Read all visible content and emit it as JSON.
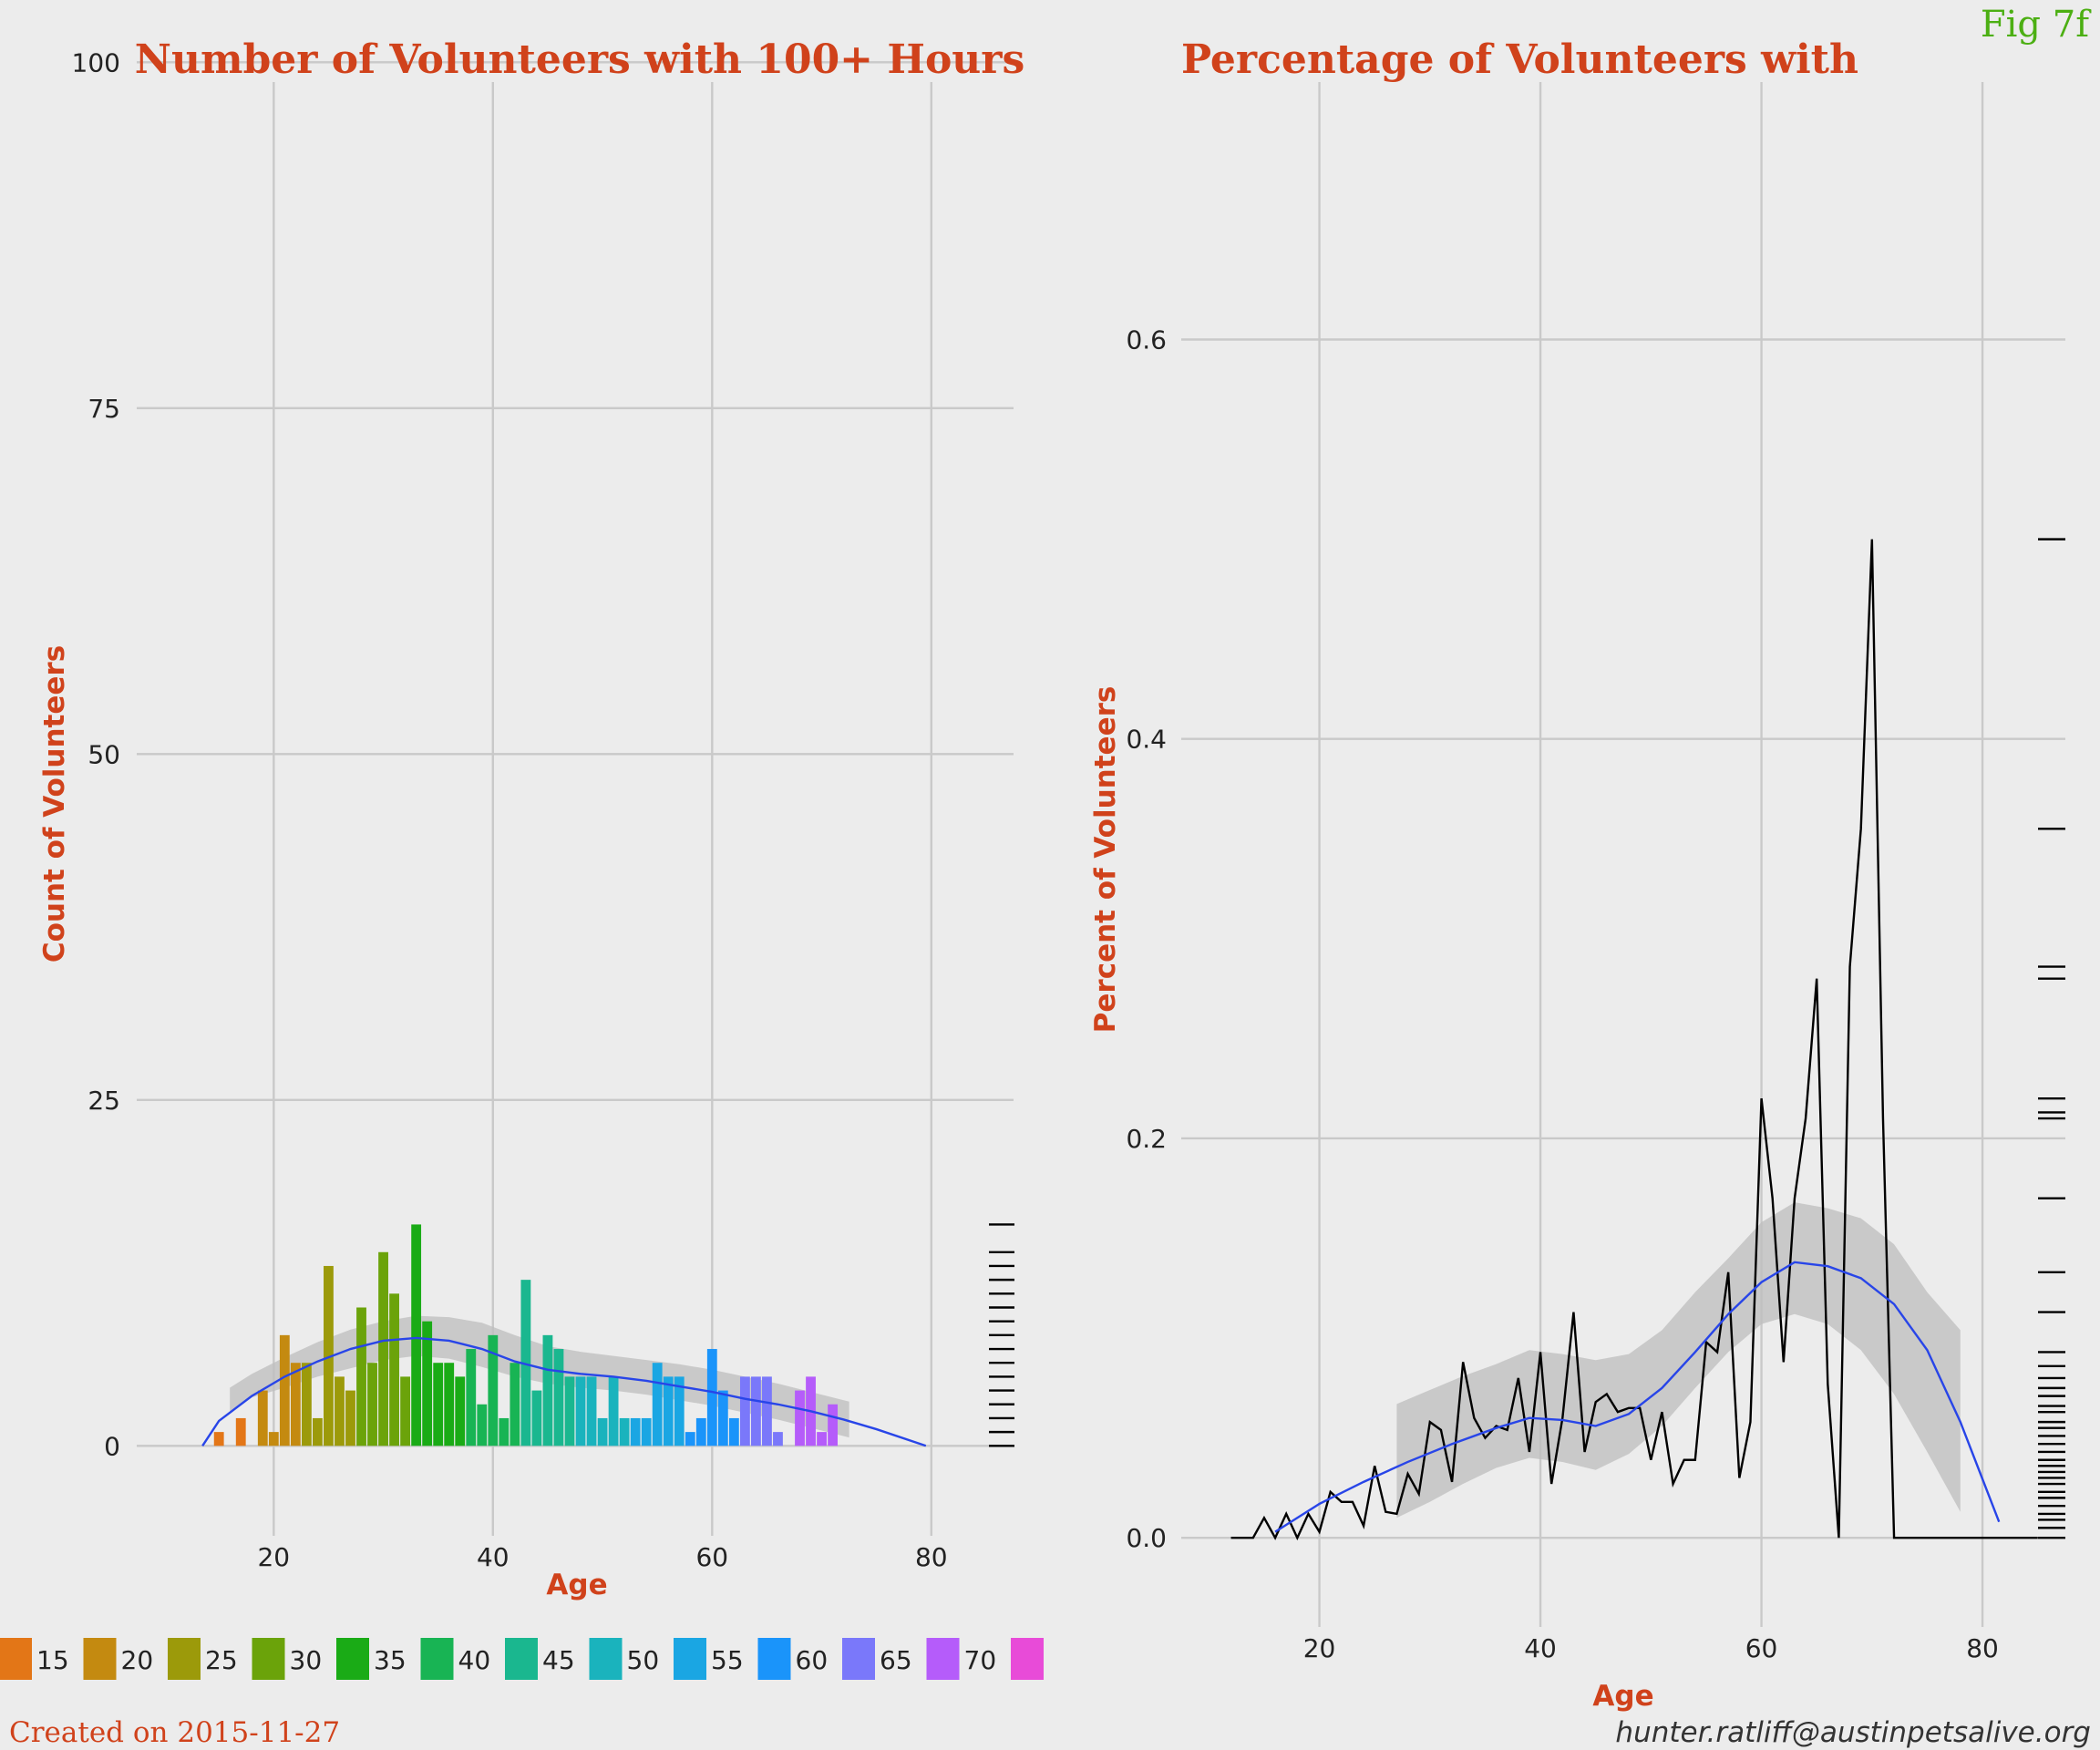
{
  "figure_label": "Fig 7f",
  "footer": {
    "created": "Created on 2015-11-27",
    "email": "hunter.ratliff@austinpetsalive.org"
  },
  "colors": {
    "background": "#ececec",
    "title": "#d0421b",
    "grid": "#c9c9c9",
    "smooth_line": "#2845e8",
    "smooth_band": "#bdbdbd",
    "fig_label": "#4caf13",
    "rug": "#000000"
  },
  "legend": {
    "items": [
      {
        "label": "15",
        "color": "#e37617"
      },
      {
        "label": "20",
        "color": "#c48a10"
      },
      {
        "label": "25",
        "color": "#9c9a0a"
      },
      {
        "label": "30",
        "color": "#6ba30a"
      },
      {
        "label": "35",
        "color": "#1aab16"
      },
      {
        "label": "40",
        "color": "#18b454"
      },
      {
        "label": "45",
        "color": "#1ab78f"
      },
      {
        "label": "50",
        "color": "#1ab3bd"
      },
      {
        "label": "55",
        "color": "#1aa6e3"
      },
      {
        "label": "60",
        "color": "#1a94fa"
      },
      {
        "label": "65",
        "color": "#7a78fa"
      },
      {
        "label": "70",
        "color": "#b55cfa"
      },
      {
        "label": "",
        "color": "#e84bd8"
      }
    ]
  },
  "chart_data": [
    {
      "type": "bar",
      "title": "Number of Volunteers with 100+ Hours",
      "xlabel": "Age",
      "ylabel": "Count of Volunteers",
      "xlim": [
        7.5,
        87.5
      ],
      "ylim": [
        -6.7,
        104.5
      ],
      "xticks": [
        20,
        40,
        60,
        80
      ],
      "yticks": [
        0,
        25,
        50,
        75,
        100
      ],
      "grid": true,
      "legend_position": "bottom",
      "ages": [
        15,
        17,
        19,
        20,
        21,
        22,
        23,
        24,
        25,
        26,
        27,
        28,
        29,
        30,
        31,
        32,
        33,
        34,
        35,
        36,
        37,
        38,
        39,
        40,
        41,
        42,
        43,
        44,
        45,
        46,
        47,
        48,
        49,
        50,
        51,
        52,
        53,
        54,
        55,
        56,
        57,
        58,
        59,
        60,
        61,
        62,
        63,
        64,
        65,
        66,
        67,
        68,
        69,
        70,
        71
      ],
      "values": [
        1,
        2,
        4,
        1,
        8,
        6,
        6,
        2,
        13,
        5,
        4,
        10,
        6,
        14,
        11,
        5,
        16,
        9,
        6,
        6,
        5,
        7,
        3,
        8,
        2,
        6,
        12,
        4,
        8,
        7,
        5,
        5,
        5,
        2,
        5,
        2,
        2,
        2,
        6,
        5,
        5,
        1,
        2,
        7,
        4,
        2,
        5,
        5,
        5,
        1,
        0,
        4,
        5,
        1,
        3
      ],
      "smooth": {
        "x": [
          13.5,
          15,
          18,
          21,
          24,
          27,
          30,
          33,
          36,
          39,
          42,
          45,
          48,
          51,
          54,
          57,
          60,
          63,
          66,
          69,
          72,
          75,
          79.5
        ],
        "y": [
          0,
          1.8,
          3.6,
          5.0,
          6.1,
          7.0,
          7.6,
          7.8,
          7.6,
          7.0,
          6.1,
          5.5,
          5.2,
          5.0,
          4.7,
          4.3,
          3.9,
          3.4,
          3.0,
          2.5,
          1.9,
          1.2,
          0
        ],
        "band_x": [
          16,
          18,
          21,
          24,
          27,
          30,
          33,
          36,
          39,
          42,
          45,
          48,
          51,
          54,
          57,
          60,
          63,
          66,
          69,
          72.5
        ],
        "band_lo": [
          2.5,
          3.5,
          4.2,
          5.0,
          5.6,
          6.2,
          6.5,
          6.3,
          5.7,
          5.0,
          4.5,
          4.2,
          4.0,
          3.7,
          3.3,
          2.9,
          2.4,
          1.9,
          1.3,
          0.6
        ],
        "band_hi": [
          4.2,
          5.2,
          6.4,
          7.5,
          8.4,
          9.0,
          9.4,
          9.3,
          8.9,
          8.0,
          7.2,
          6.8,
          6.5,
          6.2,
          5.9,
          5.5,
          5.0,
          4.5,
          3.9,
          3.2
        ]
      },
      "rug_y": [
        0,
        1,
        2,
        3,
        4,
        5,
        6,
        7,
        8,
        9,
        10,
        11,
        12,
        13,
        14,
        16
      ]
    },
    {
      "type": "line",
      "title": "Percentage of Volunteers with",
      "xlabel": "Age",
      "ylabel": "Percent of Volunteers",
      "xlim": [
        7.5,
        87.5
      ],
      "ylim": [
        -0.046,
        0.77
      ],
      "xticks": [
        20,
        40,
        60,
        80
      ],
      "yticks": [
        0.0,
        0.2,
        0.4,
        0.6
      ],
      "ytick_labels": [
        "0.0",
        "0.2",
        "0.4",
        "0.6"
      ],
      "grid": true,
      "x": [
        12,
        13,
        14,
        15,
        16,
        17,
        18,
        19,
        20,
        21,
        22,
        23,
        24,
        25,
        26,
        27,
        28,
        29,
        30,
        31,
        32,
        33,
        34,
        35,
        36,
        37,
        38,
        39,
        40,
        41,
        42,
        43,
        44,
        45,
        46,
        47,
        48,
        49,
        50,
        51,
        52,
        53,
        54,
        55,
        56,
        57,
        58,
        59,
        60,
        61,
        62,
        63,
        64,
        65,
        66,
        67,
        68,
        69,
        70,
        71,
        72,
        73,
        74,
        75,
        76,
        77,
        78,
        79,
        80,
        81,
        82,
        83,
        84,
        85
      ],
      "y": [
        0,
        0,
        0,
        0.01,
        0,
        0.012,
        0,
        0.012,
        0.003,
        0.023,
        0.018,
        0.018,
        0.006,
        0.036,
        0.013,
        0.012,
        0.032,
        0.022,
        0.058,
        0.054,
        0.028,
        0.088,
        0.06,
        0.05,
        0.056,
        0.054,
        0.08,
        0.043,
        0.093,
        0.027,
        0.06,
        0.113,
        0.043,
        0.068,
        0.072,
        0.063,
        0.065,
        0.065,
        0.039,
        0.063,
        0.027,
        0.039,
        0.039,
        0.098,
        0.093,
        0.133,
        0.03,
        0.058,
        0.22,
        0.17,
        0.088,
        0.17,
        0.21,
        0.28,
        0.077,
        0,
        0.286,
        0.355,
        0.5,
        0.21,
        0,
        0,
        0,
        0,
        0,
        0,
        0,
        0,
        0,
        0,
        0,
        0,
        0,
        0
      ],
      "smooth": {
        "x": [
          16,
          20,
          24,
          28,
          32,
          36,
          39,
          42,
          45,
          48,
          51,
          54,
          57,
          60,
          63,
          66,
          69,
          72,
          75,
          78,
          81.5
        ],
        "y": [
          0.003,
          0.017,
          0.028,
          0.038,
          0.047,
          0.055,
          0.06,
          0.059,
          0.056,
          0.062,
          0.075,
          0.093,
          0.112,
          0.128,
          0.138,
          0.136,
          0.13,
          0.117,
          0.094,
          0.058,
          0.008
        ],
        "band_x": [
          27,
          30,
          33,
          36,
          39,
          42,
          45,
          48,
          51,
          54,
          57,
          60,
          63,
          66,
          69,
          72,
          75,
          78
        ],
        "band_lo": [
          0.01,
          0.018,
          0.027,
          0.035,
          0.04,
          0.038,
          0.034,
          0.042,
          0.056,
          0.075,
          0.093,
          0.107,
          0.112,
          0.107,
          0.094,
          0.072,
          0.043,
          0.013
        ],
        "band_hi": [
          0.067,
          0.074,
          0.081,
          0.087,
          0.094,
          0.092,
          0.089,
          0.092,
          0.104,
          0.123,
          0.14,
          0.158,
          0.168,
          0.165,
          0.16,
          0.147,
          0.123,
          0.104
        ]
      },
      "rug_y": [
        0,
        0.005,
        0.009,
        0.012,
        0.016,
        0.02,
        0.023,
        0.027,
        0.03,
        0.033,
        0.036,
        0.039,
        0.043,
        0.047,
        0.051,
        0.055,
        0.058,
        0.063,
        0.066,
        0.071,
        0.075,
        0.08,
        0.086,
        0.093,
        0.113,
        0.133,
        0.17,
        0.21,
        0.213,
        0.22,
        0.28,
        0.286,
        0.355,
        0.5
      ]
    }
  ]
}
